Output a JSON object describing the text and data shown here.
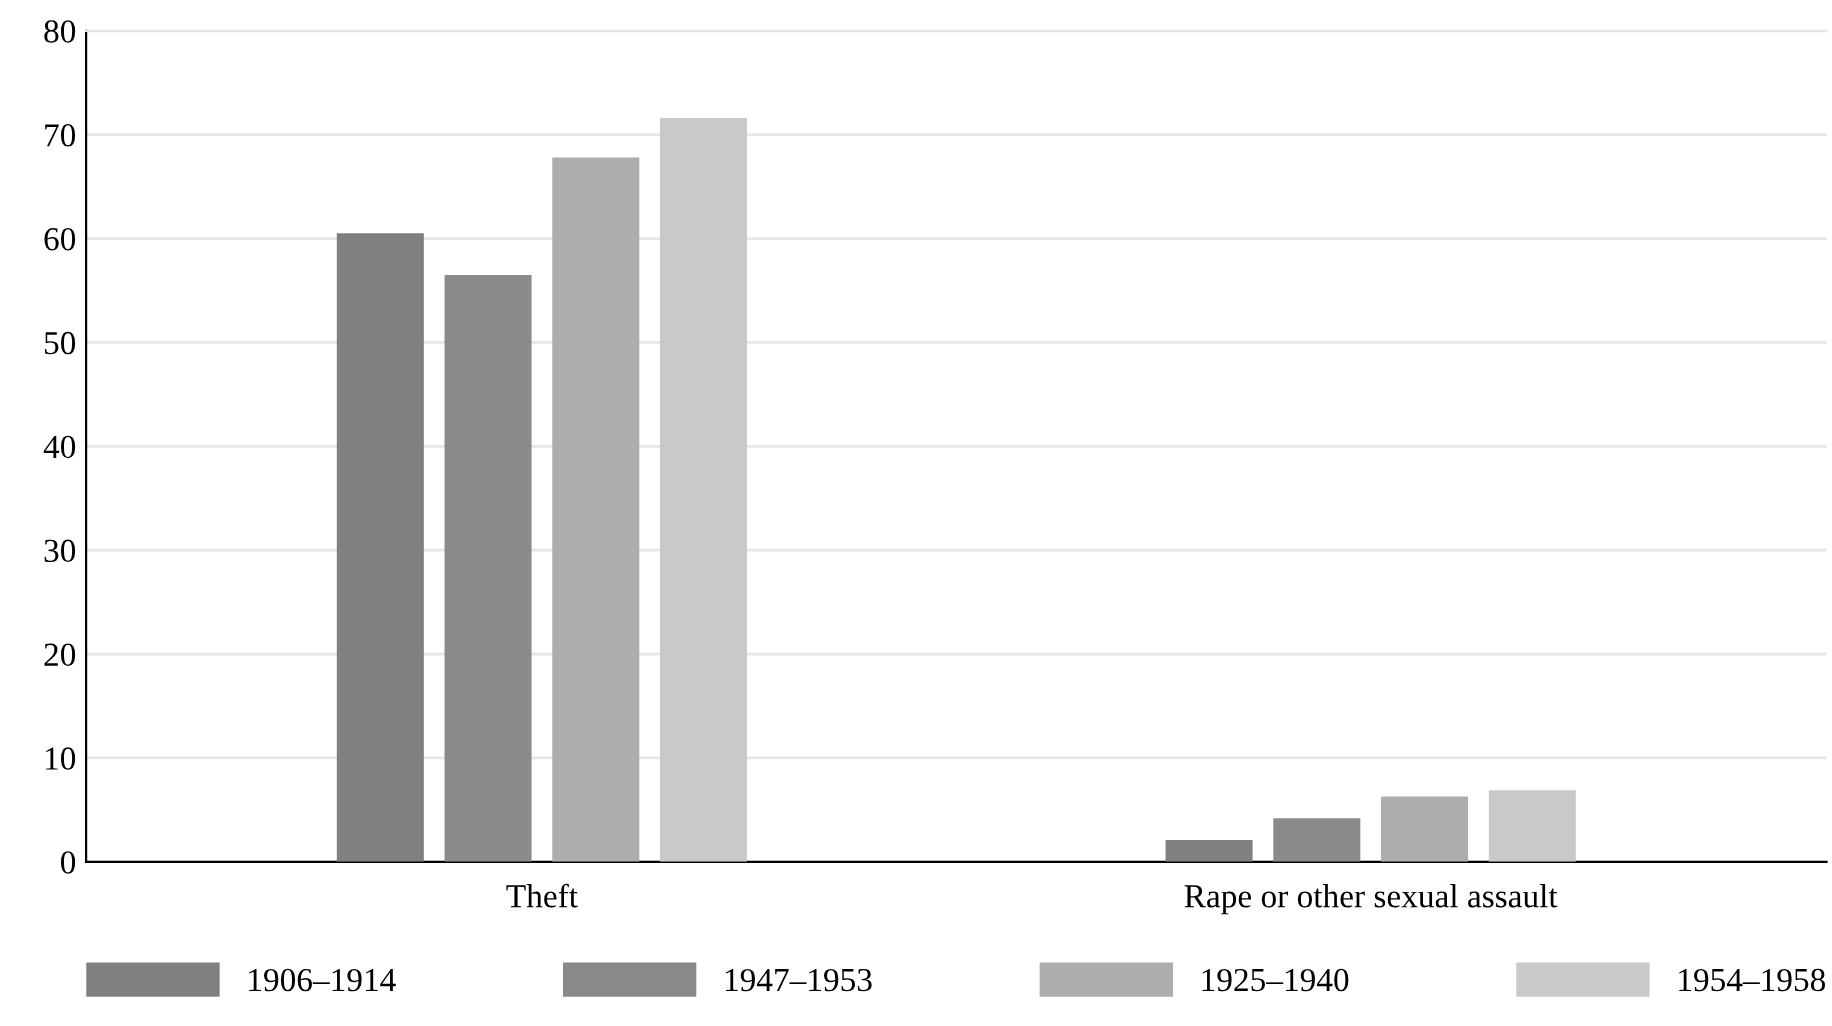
{
  "chart_data": {
    "type": "bar",
    "categories": [
      "Theft",
      "Rape or other sexual assault"
    ],
    "series": [
      {
        "name": "1906–1914",
        "color": "#808080",
        "values": [
          60.5,
          2.1
        ]
      },
      {
        "name": "1947–1953",
        "color": "#8a8a8a",
        "values": [
          56.5,
          4.2
        ]
      },
      {
        "name": "1925–1940",
        "color": "#adadad",
        "values": [
          67.8,
          6.3
        ]
      },
      {
        "name": "1954–1958",
        "color": "#c9c9c9",
        "values": [
          71.6,
          6.9
        ]
      }
    ],
    "ylim": [
      0,
      80
    ],
    "yticks": [
      0,
      10,
      20,
      30,
      40,
      50,
      60,
      70,
      80
    ],
    "grid": "y",
    "legend": "bottom"
  }
}
